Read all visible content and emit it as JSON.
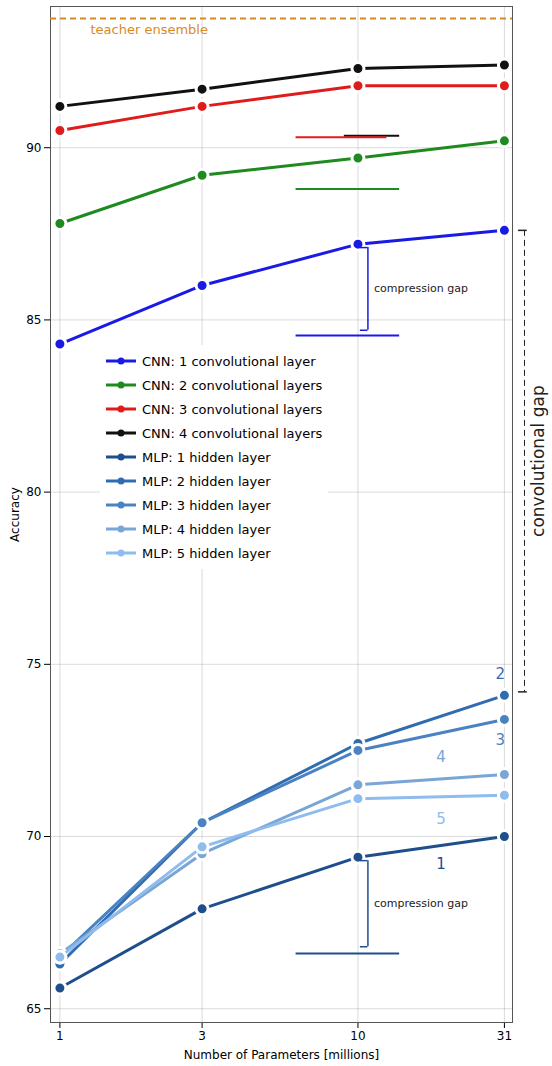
{
  "chart_data": {
    "type": "line",
    "x_label": "Number of Parameters [millions]",
    "y_label": "Accuracy",
    "log": "x",
    "grid": true,
    "legend": "center",
    "xlim": [
      0.93,
      33
    ],
    "xticks": [
      1,
      3,
      10,
      31
    ],
    "ylim": [
      64.6,
      94.1
    ],
    "yticks": [
      65,
      70,
      75,
      80,
      85,
      90
    ],
    "x": [
      1,
      3,
      10,
      31
    ],
    "series": [
      {
        "name": "CNN: 1 convolutional layer",
        "color": "#1a1ae6",
        "marker": "circle",
        "values": [
          84.3,
          86.0,
          87.2,
          87.6
        ]
      },
      {
        "name": "CNN: 2 convolutional layers",
        "color": "#1f8a1f",
        "marker": "circle",
        "values": [
          87.8,
          89.2,
          89.7,
          90.2
        ]
      },
      {
        "name": "CNN: 3 convolutional layers",
        "color": "#e01b1b",
        "marker": "circle",
        "values": [
          90.5,
          91.2,
          91.8,
          91.8
        ]
      },
      {
        "name": "CNN: 4 convolutional layers",
        "color": "#111111",
        "marker": "circle",
        "values": [
          91.2,
          91.7,
          92.3,
          92.4
        ]
      },
      {
        "name": "MLP: 1 hidden layer",
        "color": "#1f4e8c",
        "marker": "circle",
        "values": [
          65.6,
          67.9,
          69.4,
          70.0
        ]
      },
      {
        "name": "MLP: 2 hidden layer",
        "color": "#2f6cb0",
        "marker": "circle",
        "values": [
          66.3,
          70.4,
          72.7,
          74.1
        ]
      },
      {
        "name": "MLP: 3 hidden layer",
        "color": "#4a82c2",
        "marker": "circle",
        "values": [
          66.5,
          70.4,
          72.5,
          73.4
        ]
      },
      {
        "name": "MLP: 4 hidden layer",
        "color": "#7aa6d6",
        "marker": "circle",
        "values": [
          66.6,
          69.5,
          71.5,
          71.8
        ]
      },
      {
        "name": "MLP: 5 hidden layer",
        "color": "#8fbcef",
        "marker": "circle",
        "values": [
          66.5,
          69.7,
          71.1,
          71.2
        ]
      }
    ],
    "annotations": [
      {
        "type": "hline",
        "text": "teacher ensemble",
        "y": 93.75,
        "color": "#d98a1f",
        "line_style": "dashed"
      },
      {
        "type": "segment",
        "y": 90.35,
        "x": [
          9,
          13.8
        ],
        "color": "#111111"
      },
      {
        "type": "segment",
        "y": 90.3,
        "x": [
          6.2,
          12.5
        ],
        "color": "#e01b1b"
      },
      {
        "type": "segment",
        "y": 88.8,
        "x": [
          6.2,
          13.8
        ],
        "color": "#1f8a1f"
      },
      {
        "type": "segment",
        "y": 84.55,
        "x": [
          6.2,
          13.8
        ],
        "color": "#1a1ae6"
      },
      {
        "type": "segment",
        "y": 66.6,
        "x": [
          6.2,
          13.8
        ],
        "color": "#1f4e8c"
      },
      {
        "type": "brace",
        "text": "compression gap",
        "x": 10.8,
        "y": [
          87.1,
          84.7
        ],
        "color": "#1a1ae6"
      },
      {
        "type": "brace",
        "text": "compression gap",
        "x": 10.8,
        "y": [
          69.3,
          66.8
        ],
        "color": "#1f4e8c"
      },
      {
        "type": "label",
        "text": "2",
        "x": 30,
        "y": 74.7,
        "color": "#2f6cb0"
      },
      {
        "type": "label",
        "text": "3",
        "x": 30,
        "y": 72.8,
        "color": "#4a82c2"
      },
      {
        "type": "label",
        "text": "4",
        "x": 19,
        "y": 72.3,
        "color": "#7aa6d6"
      },
      {
        "type": "label",
        "text": "5",
        "x": 19,
        "y": 70.5,
        "color": "#8fbcef"
      },
      {
        "type": "label",
        "text": "1",
        "x": 19,
        "y": 69.2,
        "color": "#1f4e8c"
      },
      {
        "type": "vrange",
        "text": "convolutional gap",
        "y": [
          87.6,
          74.2
        ],
        "line_style": "dashed"
      }
    ]
  }
}
